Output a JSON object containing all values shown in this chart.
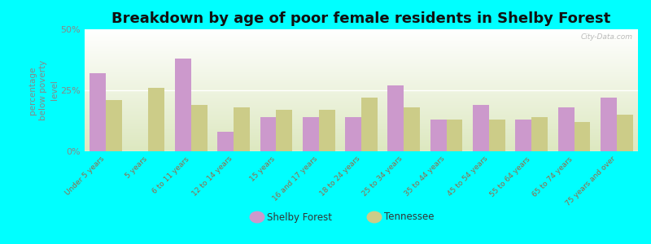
{
  "title": "Breakdown by age of poor female residents in Shelby Forest",
  "ylabel": "percentage\nbelow poverty\nlevel",
  "categories": [
    "Under 5 years",
    "5 years",
    "6 to 11 years",
    "12 to 14 years",
    "15 years",
    "16 and 17 years",
    "18 to 24 years",
    "25 to 34 years",
    "35 to 44 years",
    "45 to 54 years",
    "55 to 64 years",
    "65 to 74 years",
    "75 years and over"
  ],
  "shelby_forest": [
    32,
    0,
    38,
    8,
    14,
    14,
    14,
    27,
    13,
    19,
    13,
    18,
    22
  ],
  "tennessee": [
    21,
    26,
    19,
    18,
    17,
    17,
    22,
    18,
    13,
    13,
    14,
    12,
    15
  ],
  "shelby_color": "#cc99cc",
  "tennessee_color": "#cccc88",
  "bg_color": "#00ffff",
  "ylim": [
    0,
    50
  ],
  "yticks": [
    0,
    25,
    50
  ],
  "ytick_labels": [
    "0%",
    "25%",
    "50%"
  ],
  "watermark": "City-Data.com",
  "legend_shelby": "Shelby Forest",
  "legend_tennessee": "Tennessee",
  "title_fontsize": 13,
  "axis_label_color": "#996644",
  "ytick_color": "#888888",
  "bar_width": 0.38
}
